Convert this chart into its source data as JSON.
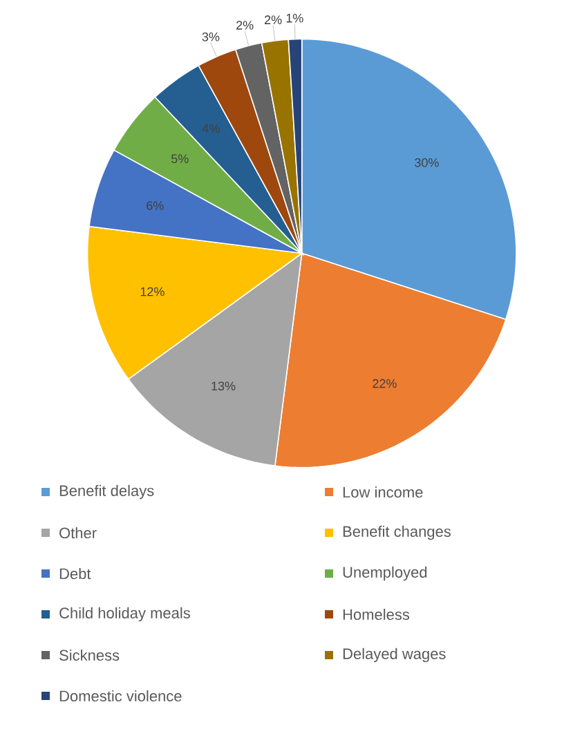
{
  "chart_data": {
    "type": "pie",
    "legend": "bottom",
    "categories": [
      "Benefit delays",
      "Low income",
      "Other",
      "Benefit changes",
      "Debt",
      "Unemployed",
      "Child holiday meals",
      "Homeless",
      "Sickness",
      "Delayed wages",
      "Domestic violence"
    ],
    "values": [
      30,
      22,
      13,
      12,
      6,
      5,
      4,
      3,
      2,
      2,
      1
    ],
    "value_labels": [
      "30%",
      "22%",
      "13%",
      "12%",
      "6%",
      "5%",
      "4%",
      "3%",
      "2%",
      "2%",
      "1%"
    ],
    "colors": [
      "#5b9bd5",
      "#ed7d31",
      "#a5a5a5",
      "#ffc000",
      "#4472c4",
      "#70ad47",
      "#255e91",
      "#9e480e",
      "#636363",
      "#997300",
      "#264478"
    ]
  }
}
